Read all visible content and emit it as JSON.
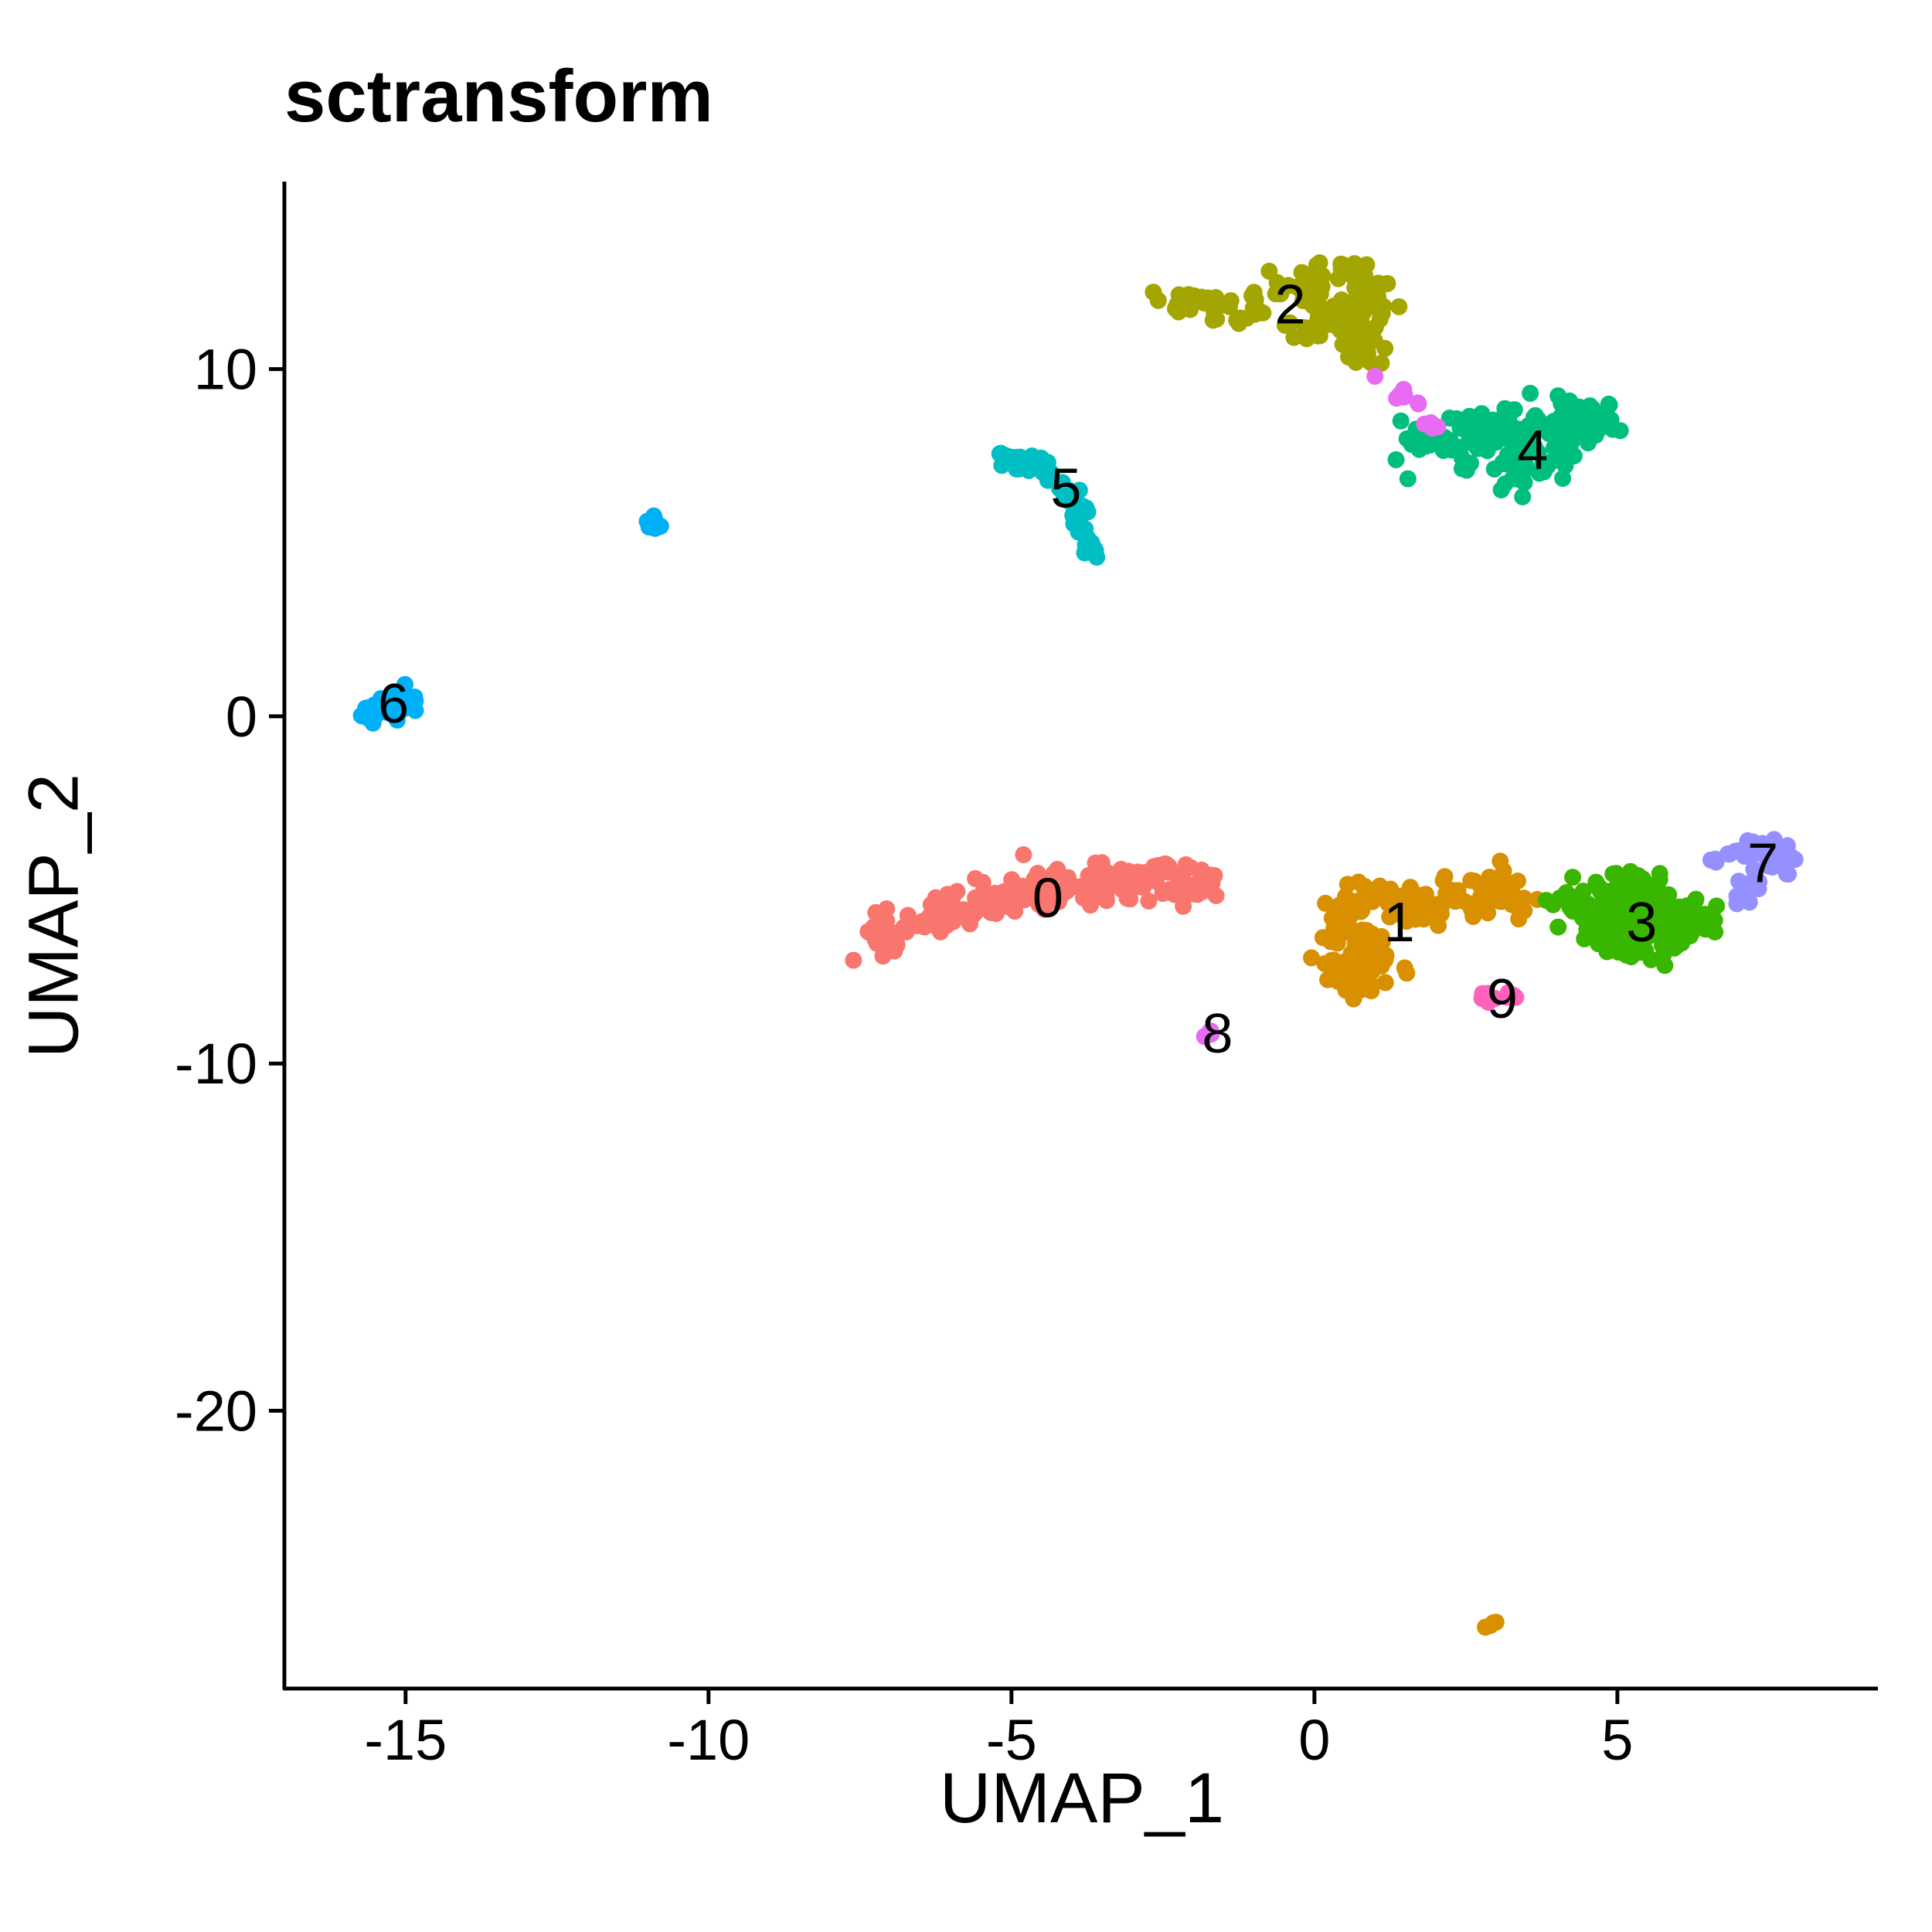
{
  "chart_data": {
    "type": "scatter",
    "title": "sctransform",
    "xlabel": "UMAP_1",
    "ylabel": "UMAP_2",
    "xlim": [
      -17,
      9.3
    ],
    "ylim": [
      -28,
      15.4
    ],
    "xticks": [
      -15,
      -10,
      -5,
      0,
      5
    ],
    "xtick_labels": [
      "-15",
      "-10",
      "-5",
      "0",
      "5"
    ],
    "yticks": [
      10,
      0,
      -10,
      -20
    ],
    "ytick_labels": [
      "10",
      "0",
      "-10",
      "-20"
    ],
    "grid": false,
    "legend": "none",
    "clusters": [
      {
        "label": "0",
        "color": "#F8766D",
        "label_pos": [
          -4.4,
          -5.2
        ],
        "path": [
          [
            -7.4,
            -6.3
          ],
          [
            -6.8,
            -6.1
          ],
          [
            -6.3,
            -5.8
          ],
          [
            -5.8,
            -5.5
          ],
          [
            -5.2,
            -5.2
          ],
          [
            -4.6,
            -5.1
          ],
          [
            -4.0,
            -5.0
          ],
          [
            -3.4,
            -4.8
          ],
          [
            -2.8,
            -4.7
          ],
          [
            -2.2,
            -4.8
          ],
          [
            -1.6,
            -4.9
          ]
        ],
        "spread": 0.3,
        "n": 220
      },
      {
        "label": "1",
        "color": "#D89000",
        "label_pos": [
          1.4,
          -5.9
        ],
        "path": [
          [
            0.2,
            -7.2
          ],
          [
            0.6,
            -7.5
          ],
          [
            1.2,
            -7.3
          ],
          [
            0.9,
            -6.6
          ],
          [
            0.4,
            -6.0
          ],
          [
            0.6,
            -5.3
          ],
          [
            1.2,
            -5.2
          ],
          [
            1.8,
            -5.5
          ],
          [
            2.4,
            -5.4
          ],
          [
            3.0,
            -4.9
          ],
          [
            3.4,
            -5.4
          ]
        ],
        "spread": 0.28,
        "n": 190
      },
      {
        "label": "1",
        "color": "#D89000",
        "label_pos": null,
        "path": [
          [
            2.8,
            -26.3
          ],
          [
            3.0,
            -26.1
          ]
        ],
        "spread": 0.05,
        "n": 4
      },
      {
        "label": "2",
        "color": "#A3A500",
        "label_pos": [
          -0.4,
          11.9
        ],
        "path": [
          [
            -2.4,
            11.9
          ],
          [
            -1.8,
            11.8
          ],
          [
            -1.2,
            11.7
          ],
          [
            -0.6,
            12.2
          ],
          [
            0.0,
            12.8
          ],
          [
            0.6,
            12.9
          ],
          [
            1.0,
            12.4
          ],
          [
            0.8,
            11.6
          ],
          [
            0.3,
            11.2
          ],
          [
            -0.2,
            11.5
          ],
          [
            0.2,
            12.2
          ],
          [
            0.6,
            11.3
          ],
          [
            0.9,
            10.4
          ]
        ],
        "spread": 0.28,
        "n": 180
      },
      {
        "label": "3",
        "color": "#39B600",
        "label_pos": [
          5.4,
          -5.9
        ],
        "path": [
          [
            4.0,
            -5.6
          ],
          [
            4.6,
            -5.2
          ],
          [
            5.2,
            -5.0
          ],
          [
            5.6,
            -5.3
          ],
          [
            5.2,
            -5.9
          ],
          [
            4.8,
            -6.5
          ],
          [
            5.4,
            -6.6
          ],
          [
            6.0,
            -6.2
          ],
          [
            6.4,
            -5.8
          ],
          [
            4.4,
            -6.1
          ]
        ],
        "spread": 0.32,
        "n": 200
      },
      {
        "label": "4",
        "color": "#00BF7D",
        "label_pos": [
          3.6,
          7.7
        ],
        "path": [
          [
            1.6,
            8.0
          ],
          [
            2.2,
            7.8
          ],
          [
            2.8,
            7.4
          ],
          [
            3.4,
            7.1
          ],
          [
            4.0,
            7.3
          ],
          [
            4.4,
            8.0
          ],
          [
            4.8,
            8.8
          ],
          [
            4.2,
            8.6
          ],
          [
            3.6,
            8.2
          ],
          [
            3.0,
            8.5
          ],
          [
            2.4,
            8.3
          ]
        ],
        "spread": 0.3,
        "n": 180
      },
      {
        "label": "5",
        "color": "#00BFC4",
        "label_pos": [
          -4.1,
          6.6
        ],
        "path": [
          [
            -5.2,
            7.6
          ],
          [
            -4.8,
            7.3
          ],
          [
            -4.4,
            7.0
          ],
          [
            -4.1,
            6.5
          ],
          [
            -3.9,
            6.0
          ],
          [
            -3.8,
            5.4
          ],
          [
            -3.7,
            4.6
          ]
        ],
        "spread": 0.14,
        "n": 60
      },
      {
        "label": "6",
        "color": "#00B0F6",
        "label_pos": [
          -15.2,
          0.4
        ],
        "path": [
          [
            -15.6,
            0.0
          ],
          [
            -15.3,
            0.3
          ],
          [
            -14.9,
            0.4
          ]
        ],
        "spread": 0.18,
        "n": 60
      },
      {
        "label": "6",
        "color": "#00B0F6",
        "label_pos": null,
        "path": [
          [
            -10.9,
            5.6
          ],
          [
            -10.8,
            5.4
          ]
        ],
        "spread": 0.08,
        "n": 14
      },
      {
        "label": "7",
        "color": "#9590FF",
        "label_pos": [
          7.4,
          -4.2
        ],
        "path": [
          [
            6.6,
            -4.1
          ],
          [
            7.0,
            -4.0
          ],
          [
            7.5,
            -3.8
          ],
          [
            7.9,
            -4.1
          ],
          [
            7.4,
            -4.4
          ],
          [
            7.2,
            -4.9
          ],
          [
            7.0,
            -5.4
          ]
        ],
        "spread": 0.18,
        "n": 60
      },
      {
        "label": "8",
        "color": "#E76BF3",
        "label_pos": [
          -1.6,
          -9.1
        ],
        "path": [
          [
            -1.8,
            -9.2
          ],
          [
            -1.7,
            -9.1
          ]
        ],
        "spread": 0.05,
        "n": 5
      },
      {
        "label": "8",
        "color": "#E76BF3",
        "label_pos": null,
        "path": [
          [
            0.9,
            9.9
          ],
          [
            1.4,
            9.3
          ],
          [
            1.6,
            9.1
          ],
          [
            2.0,
            8.5
          ],
          [
            1.6,
            8.1
          ]
        ],
        "spread": 0.06,
        "n": 14
      },
      {
        "label": "9",
        "color": "#FF62BC",
        "label_pos": [
          3.1,
          -8.1
        ],
        "path": [
          [
            2.7,
            -8.0
          ],
          [
            3.0,
            -8.1
          ],
          [
            3.3,
            -8.1
          ]
        ],
        "spread": 0.08,
        "n": 12
      }
    ]
  }
}
